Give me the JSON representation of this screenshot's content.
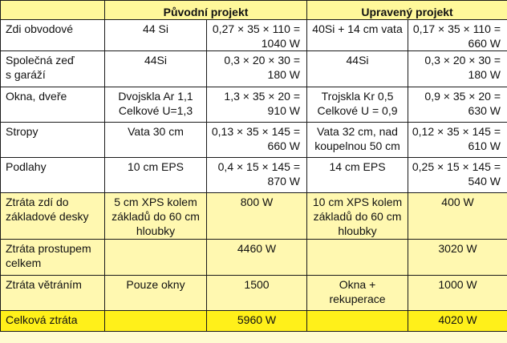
{
  "header": {
    "blank": "",
    "original_project": "Původní projekt",
    "modified_project": "Upravený projekt"
  },
  "rows": [
    {
      "label": [
        "Zdi obvodové"
      ],
      "orig_desc": [
        "44 Si"
      ],
      "orig_calc": [
        "0,27 × 35 × 110 =",
        "1040 W"
      ],
      "mod_desc": [
        "40Si + 14 cm vata"
      ],
      "mod_calc": [
        "0,17 × 35 × 110 =",
        "660 W"
      ]
    },
    {
      "label": [
        "Společná zeď",
        "s garáží"
      ],
      "orig_desc": [
        "44Si"
      ],
      "orig_calc": [
        "0,3 × 20 × 30 =",
        "180 W"
      ],
      "mod_desc": [
        "44Si"
      ],
      "mod_calc": [
        "0,3 × 20 × 30 =",
        "180 W"
      ]
    },
    {
      "label": [
        "Okna, dveře"
      ],
      "orig_desc": [
        "Dvojskla Ar 1,1",
        "Celkové U=1,3"
      ],
      "orig_calc": [
        "1,3 × 35 × 20 =",
        "910 W"
      ],
      "mod_desc": [
        "Trojskla Kr 0,5",
        "Celkové U = 0,9"
      ],
      "mod_calc": [
        "0,9 × 35 × 20 =",
        "630 W"
      ]
    },
    {
      "label": [
        "Stropy"
      ],
      "orig_desc": [
        "Vata 30 cm"
      ],
      "orig_calc": [
        "0,13 × 35 × 145 =",
        "660 W"
      ],
      "mod_desc": [
        "Vata 32 cm, nad",
        "koupelnou 50 cm"
      ],
      "mod_calc": [
        "0,12 × 35 × 145 =",
        "610 W"
      ]
    },
    {
      "label": [
        "Podlahy"
      ],
      "orig_desc": [
        "10 cm EPS"
      ],
      "orig_calc": [
        "0,4 × 15 × 145 =",
        "870 W"
      ],
      "mod_desc": [
        "14 cm EPS"
      ],
      "mod_calc": [
        "0,25 × 15 × 145 =",
        "540 W"
      ]
    },
    {
      "label": [
        "Ztráta zdí do",
        "základové desky"
      ],
      "orig_desc": [
        "5 cm XPS kolem",
        "základů do 60 cm",
        "hloubky"
      ],
      "orig_calc": [
        "800 W"
      ],
      "mod_desc": [
        "10 cm XPS kolem",
        "základů do 60 cm",
        "hloubky"
      ],
      "mod_calc": [
        "400 W"
      ]
    },
    {
      "label": [
        "Ztráta prostupem",
        "celkem"
      ],
      "orig_desc": [
        ""
      ],
      "orig_calc": [
        "4460 W"
      ],
      "mod_desc": [
        ""
      ],
      "mod_calc": [
        "3020 W"
      ]
    },
    {
      "label": [
        "Ztráta větráním"
      ],
      "orig_desc": [
        "Pouze okny"
      ],
      "orig_calc": [
        "1500"
      ],
      "mod_desc": [
        "Okna +",
        "rekuperace"
      ],
      "mod_calc": [
        "1000 W"
      ]
    },
    {
      "label": [
        "Celková ztráta"
      ],
      "orig_desc": [
        ""
      ],
      "orig_calc": [
        "5960 W"
      ],
      "mod_desc": [
        ""
      ],
      "mod_calc": [
        "4020 W"
      ]
    }
  ]
}
